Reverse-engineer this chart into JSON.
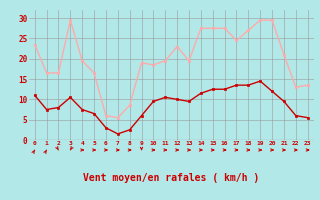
{
  "x": [
    0,
    1,
    2,
    3,
    4,
    5,
    6,
    7,
    8,
    9,
    10,
    11,
    12,
    13,
    14,
    15,
    16,
    17,
    18,
    19,
    20,
    21,
    22,
    23
  ],
  "speed_avg": [
    11,
    7.5,
    8,
    10.5,
    7.5,
    6.5,
    3,
    1.5,
    2.5,
    6,
    9.5,
    10.5,
    10,
    9.5,
    11.5,
    12.5,
    12.5,
    13.5,
    13.5,
    14.5,
    12,
    9.5,
    6,
    5.5
  ],
  "speed_gust": [
    23.5,
    16.5,
    16.5,
    29.5,
    19.5,
    16.5,
    6,
    5.5,
    8.5,
    19,
    18.5,
    19.5,
    23,
    19.5,
    27.5,
    27.5,
    27.5,
    24.5,
    27,
    29.5,
    29.5,
    21,
    13,
    13.5
  ],
  "avg_color": "#cc0000",
  "gust_color": "#ffaaaa",
  "bg_color": "#b3e8e8",
  "grid_color": "#999999",
  "xlabel": "Vent moyen/en rafales ( km/h )",
  "ylim": [
    0,
    32
  ],
  "yticks": [
    0,
    5,
    10,
    15,
    20,
    25,
    30
  ]
}
